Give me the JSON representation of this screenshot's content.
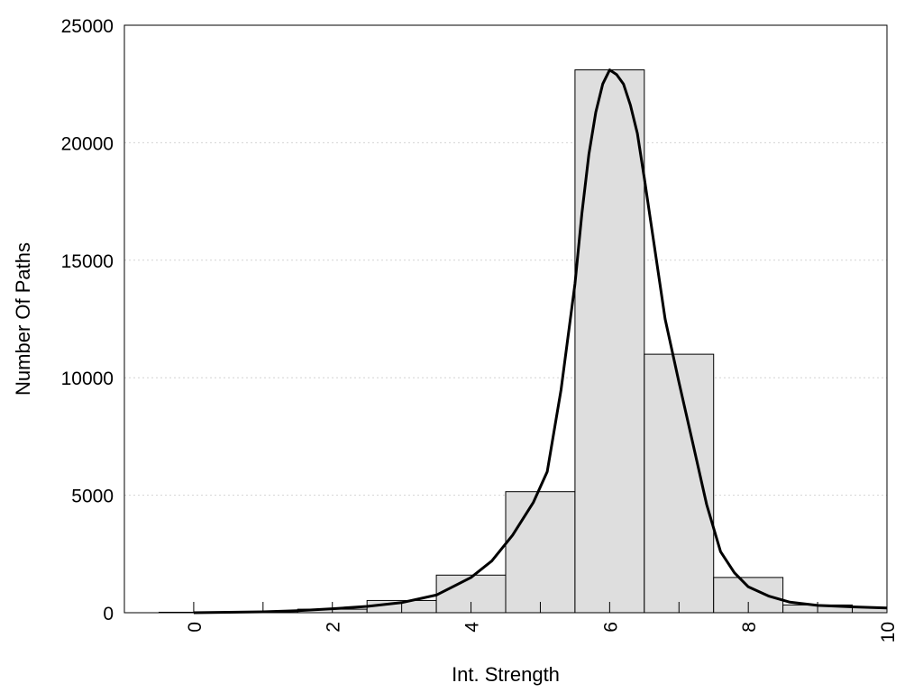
{
  "chart_data": {
    "type": "bar",
    "subtype": "histogram-with-fit-curve",
    "title": "",
    "xlabel": "Int. Strength",
    "ylabel": "Number Of Paths",
    "xlim": [
      -1,
      10
    ],
    "ylim": [
      0,
      25000
    ],
    "x_ticks": [
      0,
      2,
      4,
      6,
      8,
      10
    ],
    "y_ticks": [
      0,
      5000,
      10000,
      15000,
      20000,
      25000
    ],
    "x_tick_labels": [
      "0",
      "2",
      "4",
      "6",
      "8",
      "10"
    ],
    "y_tick_labels": [
      "0",
      "5000",
      "10000",
      "15000",
      "20000",
      "25000"
    ],
    "grid": "horizontal dotted",
    "legend": "none",
    "bin_width": 1,
    "bins": [
      {
        "x": 0,
        "value": 20
      },
      {
        "x": 1,
        "value": 50
      },
      {
        "x": 2,
        "value": 150
      },
      {
        "x": 3,
        "value": 520
      },
      {
        "x": 4,
        "value": 1600
      },
      {
        "x": 5,
        "value": 5150
      },
      {
        "x": 6,
        "value": 23100
      },
      {
        "x": 7,
        "value": 11000
      },
      {
        "x": 8,
        "value": 1500
      },
      {
        "x": 9,
        "value": 330
      },
      {
        "x": 10,
        "value": 230
      }
    ],
    "fit_curve": {
      "x": [
        0,
        0.5,
        1,
        1.5,
        2,
        2.5,
        3,
        3.5,
        4,
        4.3,
        4.6,
        4.9,
        5.1,
        5.3,
        5.5,
        5.6,
        5.7,
        5.8,
        5.9,
        6.0,
        6.1,
        6.2,
        6.3,
        6.4,
        6.5,
        6.6,
        6.8,
        7.0,
        7.2,
        7.4,
        7.6,
        7.8,
        8.0,
        8.3,
        8.6,
        9.0,
        9.5,
        10
      ],
      "y": [
        0,
        20,
        40,
        90,
        170,
        270,
        430,
        750,
        1500,
        2200,
        3300,
        4700,
        6000,
        9500,
        14000,
        17000,
        19500,
        21300,
        22500,
        23100,
        22900,
        22500,
        21600,
        20400,
        18500,
        16500,
        12500,
        9800,
        7200,
        4600,
        2600,
        1700,
        1100,
        700,
        450,
        310,
        250,
        200
      ]
    },
    "colors": {
      "bar_fill": "#dedede",
      "bar_stroke": "#000000",
      "curve": "#000000",
      "grid": "#d4d4d4"
    }
  }
}
